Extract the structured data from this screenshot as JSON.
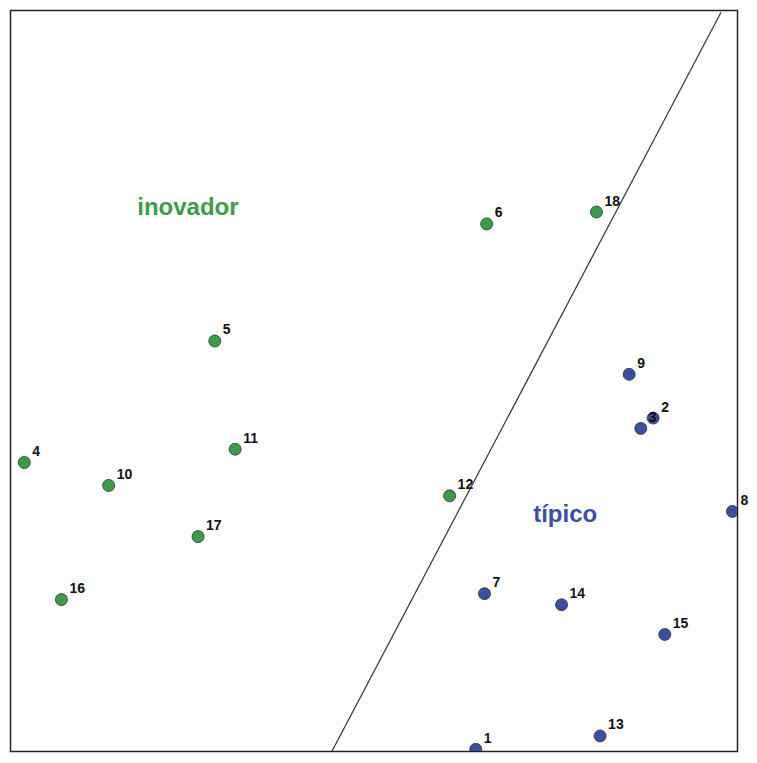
{
  "chart_data": {
    "type": "scatter",
    "xlim": [
      0,
      100
    ],
    "ylim": [
      0,
      100
    ],
    "xticks": [],
    "yticks": [],
    "tick_labels": false,
    "grid": false,
    "series": [
      {
        "name": "inovador",
        "color": "#3a9d48",
        "marker": "circle",
        "labels": [
          "4",
          "5",
          "6",
          "10",
          "11",
          "12",
          "16",
          "17",
          "18"
        ],
        "x": [
          1.9,
          28.1,
          65.5,
          13.5,
          30.9,
          60.4,
          7.0,
          25.8,
          80.6
        ],
        "values": [
          39.0,
          55.4,
          71.2,
          35.9,
          40.8,
          34.5,
          20.5,
          29.0,
          72.8
        ]
      },
      {
        "name": "típico",
        "color": "#3c4da6",
        "marker": "circle",
        "labels": [
          "1",
          "2",
          "3",
          "7",
          "8",
          "9",
          "13",
          "14",
          "15"
        ],
        "x": [
          64.0,
          88.4,
          86.7,
          65.2,
          99.3,
          85.1,
          81.1,
          75.8,
          90.0
        ],
        "values": [
          0.3,
          45.0,
          43.6,
          21.3,
          32.4,
          50.9,
          2.1,
          19.8,
          15.8
        ]
      }
    ],
    "boundary": {
      "x": [
        44.2,
        97.7
      ],
      "values": [
        0,
        99.7
      ],
      "color": "#333333",
      "line_style": "solid"
    },
    "annotations": [
      {
        "text": "inovador",
        "x": 24.4,
        "y": 73.5,
        "color": "#3a9d48"
      },
      {
        "text": "típico",
        "x": 76.3,
        "y": 32.0,
        "color": "#3c4da6"
      }
    ]
  }
}
